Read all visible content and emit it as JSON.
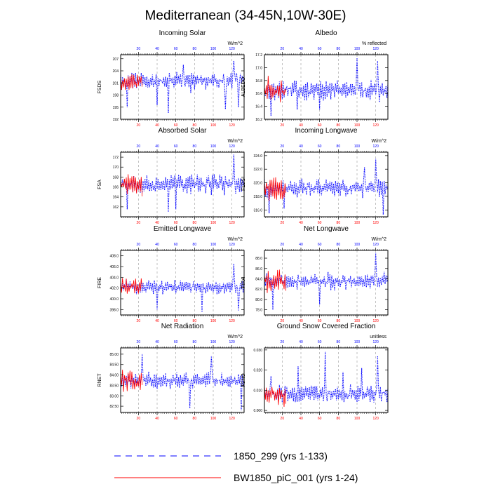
{
  "title": "Mediterranean (34-45N,10W-30E)",
  "colors": {
    "run1": "#0000ff",
    "run2": "#ff0000",
    "axis": "#000000",
    "grid": "#9a9a9a"
  },
  "legend": [
    {
      "label": "1850_299 (yrs 1-133)",
      "color": "#0000ff",
      "style": "dashed"
    },
    {
      "label": "BW1850_piC_001 (yrs 1-24)",
      "color": "#ff0000",
      "style": "solid"
    }
  ],
  "chart_data": [
    {
      "type": "line",
      "title": "Incoming Solar",
      "ylabel": "FSDS",
      "unit": "W/m^2",
      "xlim": [
        1,
        133
      ],
      "xticks_bottom": [
        20,
        40,
        60,
        80,
        100,
        120
      ],
      "xticks_top": [
        20,
        40,
        60,
        80,
        100,
        120
      ],
      "ylim": [
        192,
        208
      ],
      "yticks": [
        "192",
        "195",
        "198",
        "201",
        "204",
        "207"
      ],
      "ytick_values": [
        192,
        195,
        198,
        201,
        204,
        207
      ],
      "base": 201.5,
      "amp": 3.0,
      "dips": [
        [
          8,
          195
        ],
        [
          40,
          195.5
        ],
        [
          52,
          193.5
        ],
        [
          76,
          198.5
        ],
        [
          113,
          194.5
        ],
        [
          127,
          195
        ]
      ],
      "peaks": [
        [
          68,
          205.5
        ],
        [
          122,
          206.5
        ]
      ],
      "series": [
        {
          "name": "1850_299 (yrs 1-133)",
          "n": 133,
          "seed": 11
        },
        {
          "name": "BW1850_piC_001 (yrs 1-24)",
          "n": 24,
          "seed": 12
        }
      ]
    },
    {
      "type": "line",
      "title": "Albedo",
      "ylabel": "ALBEDO",
      "unit": "% reflected",
      "xlim": [
        1,
        133
      ],
      "xticks_bottom": [
        20,
        40,
        60,
        80,
        100,
        120
      ],
      "xticks_top": [
        20,
        40,
        60,
        80,
        100,
        120
      ],
      "ylim": [
        16.2,
        17.2
      ],
      "yticks": [
        "16.2",
        "16.4",
        "16.6",
        "16.8",
        "17.0",
        "17.2"
      ],
      "ytick_values": [
        16.2,
        16.4,
        16.6,
        16.8,
        17.0,
        17.2
      ],
      "base": 16.65,
      "amp": 0.22,
      "dips": [
        [
          8,
          16.25
        ],
        [
          36,
          16.35
        ],
        [
          60,
          16.35
        ]
      ],
      "peaks": [
        [
          100,
          17.15
        ],
        [
          122,
          17.1
        ]
      ],
      "series": [
        {
          "name": "1850_299 (yrs 1-133)",
          "n": 133,
          "seed": 21
        },
        {
          "name": "BW1850_piC_001 (yrs 1-24)",
          "n": 24,
          "seed": 22
        }
      ]
    },
    {
      "type": "line",
      "title": "Absorbed Solar",
      "ylabel": "FSA",
      "unit": "W/m^2",
      "xlim": [
        1,
        133
      ],
      "xticks_bottom": [
        20,
        40,
        60,
        80,
        100,
        120
      ],
      "xticks_top": [
        20,
        40,
        60,
        80,
        100,
        120
      ],
      "ylim": [
        160,
        173
      ],
      "yticks": [
        "162",
        "164",
        "166",
        "168",
        "170",
        "172"
      ],
      "ytick_values": [
        162,
        164,
        166,
        168,
        170,
        172
      ],
      "base": 166.5,
      "amp": 2.6,
      "dips": [
        [
          8,
          161.5
        ],
        [
          52,
          161
        ],
        [
          60,
          161.5
        ]
      ],
      "peaks": [
        [
          122,
          172.5
        ]
      ],
      "series": [
        {
          "name": "1850_299 (yrs 1-133)",
          "n": 133,
          "seed": 31
        },
        {
          "name": "BW1850_piC_001 (yrs 1-24)",
          "n": 24,
          "seed": 32
        }
      ]
    },
    {
      "type": "line",
      "title": "Incoming Longwave",
      "ylabel": "FLDS",
      "unit": "W/m^2",
      "xlim": [
        1,
        133
      ],
      "xticks_bottom": [
        20,
        40,
        60,
        80,
        100,
        120
      ],
      "xticks_top": [
        20,
        40,
        60,
        80,
        100,
        120
      ],
      "ylim": [
        315,
        324.5
      ],
      "yticks": [
        "316.0",
        "318.0",
        "320.0",
        "322.0",
        "324.0"
      ],
      "ytick_values": [
        316,
        318,
        320,
        322,
        324
      ],
      "base": 319.2,
      "amp": 1.8,
      "dips": [
        [
          6,
          315.5
        ],
        [
          22,
          316.2
        ],
        [
          128,
          315.3
        ]
      ],
      "peaks": [
        [
          120,
          323.5
        ],
        [
          108,
          322.3
        ]
      ],
      "series": [
        {
          "name": "1850_299 (yrs 1-133)",
          "n": 133,
          "seed": 41
        },
        {
          "name": "BW1850_piC_001 (yrs 1-24)",
          "n": 24,
          "seed": 42
        }
      ]
    },
    {
      "type": "line",
      "title": "Emitted Longwave",
      "ylabel": "FIRE",
      "unit": "W/m^2",
      "xlim": [
        1,
        133
      ],
      "xticks_bottom": [
        20,
        40,
        60,
        80,
        100,
        120
      ],
      "xticks_top": [
        20,
        40,
        60,
        80,
        100,
        120
      ],
      "ylim": [
        397,
        409
      ],
      "yticks": [
        "398.0",
        "400.0",
        "402.0",
        "404.0",
        "406.0",
        "408.0"
      ],
      "ytick_values": [
        398,
        400,
        402,
        404,
        406,
        408
      ],
      "base": 402.2,
      "amp": 1.8,
      "dips": [
        [
          40,
          398
        ],
        [
          88,
          397.5
        ],
        [
          127,
          397.8
        ]
      ],
      "peaks": [
        [
          122,
          406.5
        ]
      ],
      "series": [
        {
          "name": "1850_299 (yrs 1-133)",
          "n": 133,
          "seed": 51
        },
        {
          "name": "BW1850_piC_001 (yrs 1-24)",
          "n": 24,
          "seed": 52
        }
      ]
    },
    {
      "type": "line",
      "title": "Net Longwave",
      "ylabel": "FIRA",
      "unit": "W/m^2",
      "xlim": [
        1,
        133
      ],
      "xticks_bottom": [
        20,
        40,
        60,
        80,
        100,
        120
      ],
      "xticks_top": [
        20,
        40,
        60,
        80,
        100,
        120
      ],
      "ylim": [
        77,
        89.5
      ],
      "yticks": [
        "78.0",
        "80.0",
        "82.0",
        "84.0",
        "86.0",
        "88.0"
      ],
      "ytick_values": [
        78,
        80,
        82,
        84,
        86,
        88
      ],
      "base": 83.5,
      "amp": 2.2,
      "dips": [
        [
          10,
          78
        ],
        [
          60,
          79
        ]
      ],
      "peaks": [
        [
          120,
          89
        ]
      ],
      "series": [
        {
          "name": "1850_299 (yrs 1-133)",
          "n": 133,
          "seed": 61
        },
        {
          "name": "BW1850_piC_001 (yrs 1-24)",
          "n": 24,
          "seed": 62
        }
      ]
    },
    {
      "type": "line",
      "title": "Net Radiation",
      "ylabel": "RNET",
      "unit": "W/m^2",
      "xlim": [
        1,
        133
      ],
      "xticks_bottom": [
        20,
        40,
        60,
        80,
        100,
        120
      ],
      "xticks_top": [
        20,
        40,
        60,
        80,
        100,
        120
      ],
      "ylim": [
        82.2,
        85.3
      ],
      "yticks": [
        "82.50",
        "83.00",
        "83.50",
        "84.00",
        "84.50",
        "85.00"
      ],
      "ytick_values": [
        82.5,
        83,
        83.5,
        84,
        84.5,
        85
      ],
      "base": 83.75,
      "amp": 0.55,
      "dips": [
        [
          75,
          82.4
        ],
        [
          130,
          82.3
        ]
      ],
      "peaks": [
        [
          24,
          85.0
        ],
        [
          98,
          84.9
        ]
      ],
      "series": [
        {
          "name": "1850_299 (yrs 1-133)",
          "n": 133,
          "seed": 71
        },
        {
          "name": "BW1850_piC_001 (yrs 1-24)",
          "n": 24,
          "seed": 72
        }
      ]
    },
    {
      "type": "line",
      "title": "Ground Snow Covered Fraction",
      "ylabel": "FSNO",
      "unit": "unitless",
      "xlim": [
        1,
        133
      ],
      "xticks_bottom": [
        20,
        40,
        60,
        80,
        100,
        120
      ],
      "xticks_top": [
        20,
        40,
        60,
        80,
        100,
        120
      ],
      "ylim": [
        -0.001,
        0.031
      ],
      "yticks": [
        "0.000",
        "0.010",
        "0.020",
        "0.030"
      ],
      "ytick_values": [
        0,
        0.01,
        0.02,
        0.03
      ],
      "base": 0.008,
      "amp": 0.006,
      "floor": 0.0002,
      "dips": [],
      "peaks": [
        [
          66,
          0.029
        ],
        [
          122,
          0.027
        ],
        [
          37,
          0.022
        ],
        [
          105,
          0.021
        ],
        [
          85,
          0.019
        ],
        [
          8,
          0.017
        ]
      ],
      "series": [
        {
          "name": "1850_299 (yrs 1-133)",
          "n": 133,
          "seed": 81
        },
        {
          "name": "BW1850_piC_001 (yrs 1-24)",
          "n": 24,
          "seed": 82
        }
      ]
    }
  ]
}
